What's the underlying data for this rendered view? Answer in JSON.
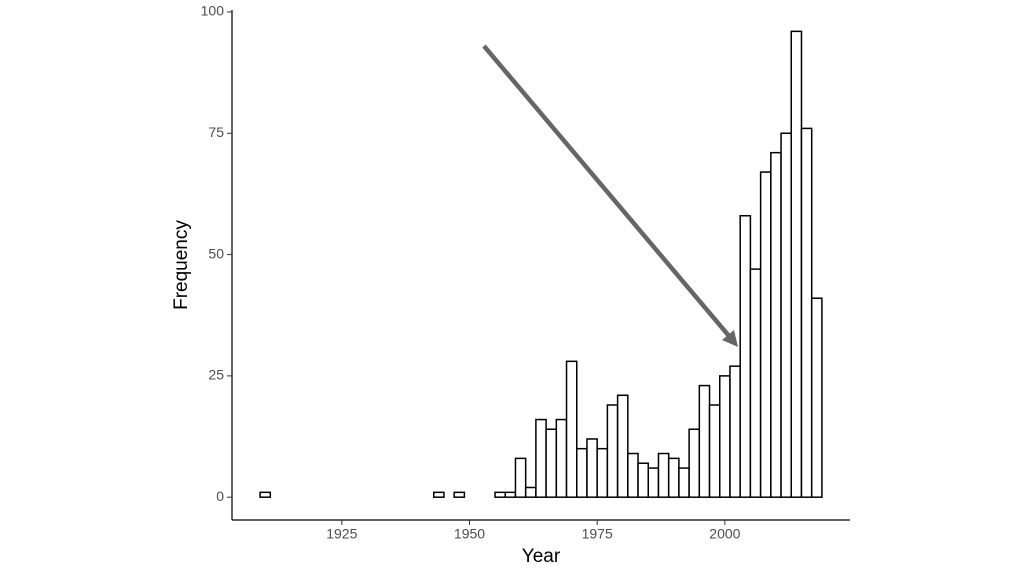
{
  "chart_data": {
    "type": "histogram",
    "x_label": "Year",
    "y_label": "Frequency",
    "bins": [
      1909,
      1911,
      1913,
      1915,
      1917,
      1919,
      1921,
      1923,
      1925,
      1927,
      1929,
      1931,
      1933,
      1935,
      1937,
      1939,
      1941,
      1943,
      1945,
      1947,
      1949,
      1951,
      1953,
      1955,
      1957,
      1959,
      1961,
      1963,
      1965,
      1967,
      1969,
      1971,
      1973,
      1975,
      1977,
      1979,
      1981,
      1983,
      1985,
      1987,
      1989,
      1991,
      1993,
      1995,
      1997,
      1999,
      2001,
      2003,
      2005,
      2007,
      2009,
      2011,
      2013,
      2015,
      2017,
      2019
    ],
    "values": [
      1,
      0,
      0,
      0,
      0,
      0,
      0,
      0,
      0,
      0,
      0,
      0,
      0,
      0,
      0,
      0,
      0,
      1,
      0,
      1,
      0,
      0,
      0,
      1,
      1,
      8,
      2,
      16,
      14,
      16,
      28,
      10,
      12,
      10,
      19,
      21,
      9,
      7,
      6,
      9,
      8,
      6,
      14,
      23,
      19,
      25,
      27,
      58,
      47,
      67,
      71,
      75,
      96,
      76,
      41
    ],
    "color": "#ffffff",
    "edge_color": "#000000",
    "xlim": [
      1903.5,
      2024.5
    ],
    "ylim": [
      -4.7,
      100.4
    ],
    "xticks": [
      1925,
      1950,
      1975,
      2000
    ],
    "yticks": [
      0,
      25,
      50,
      75,
      100
    ],
    "grid": false
  }
}
